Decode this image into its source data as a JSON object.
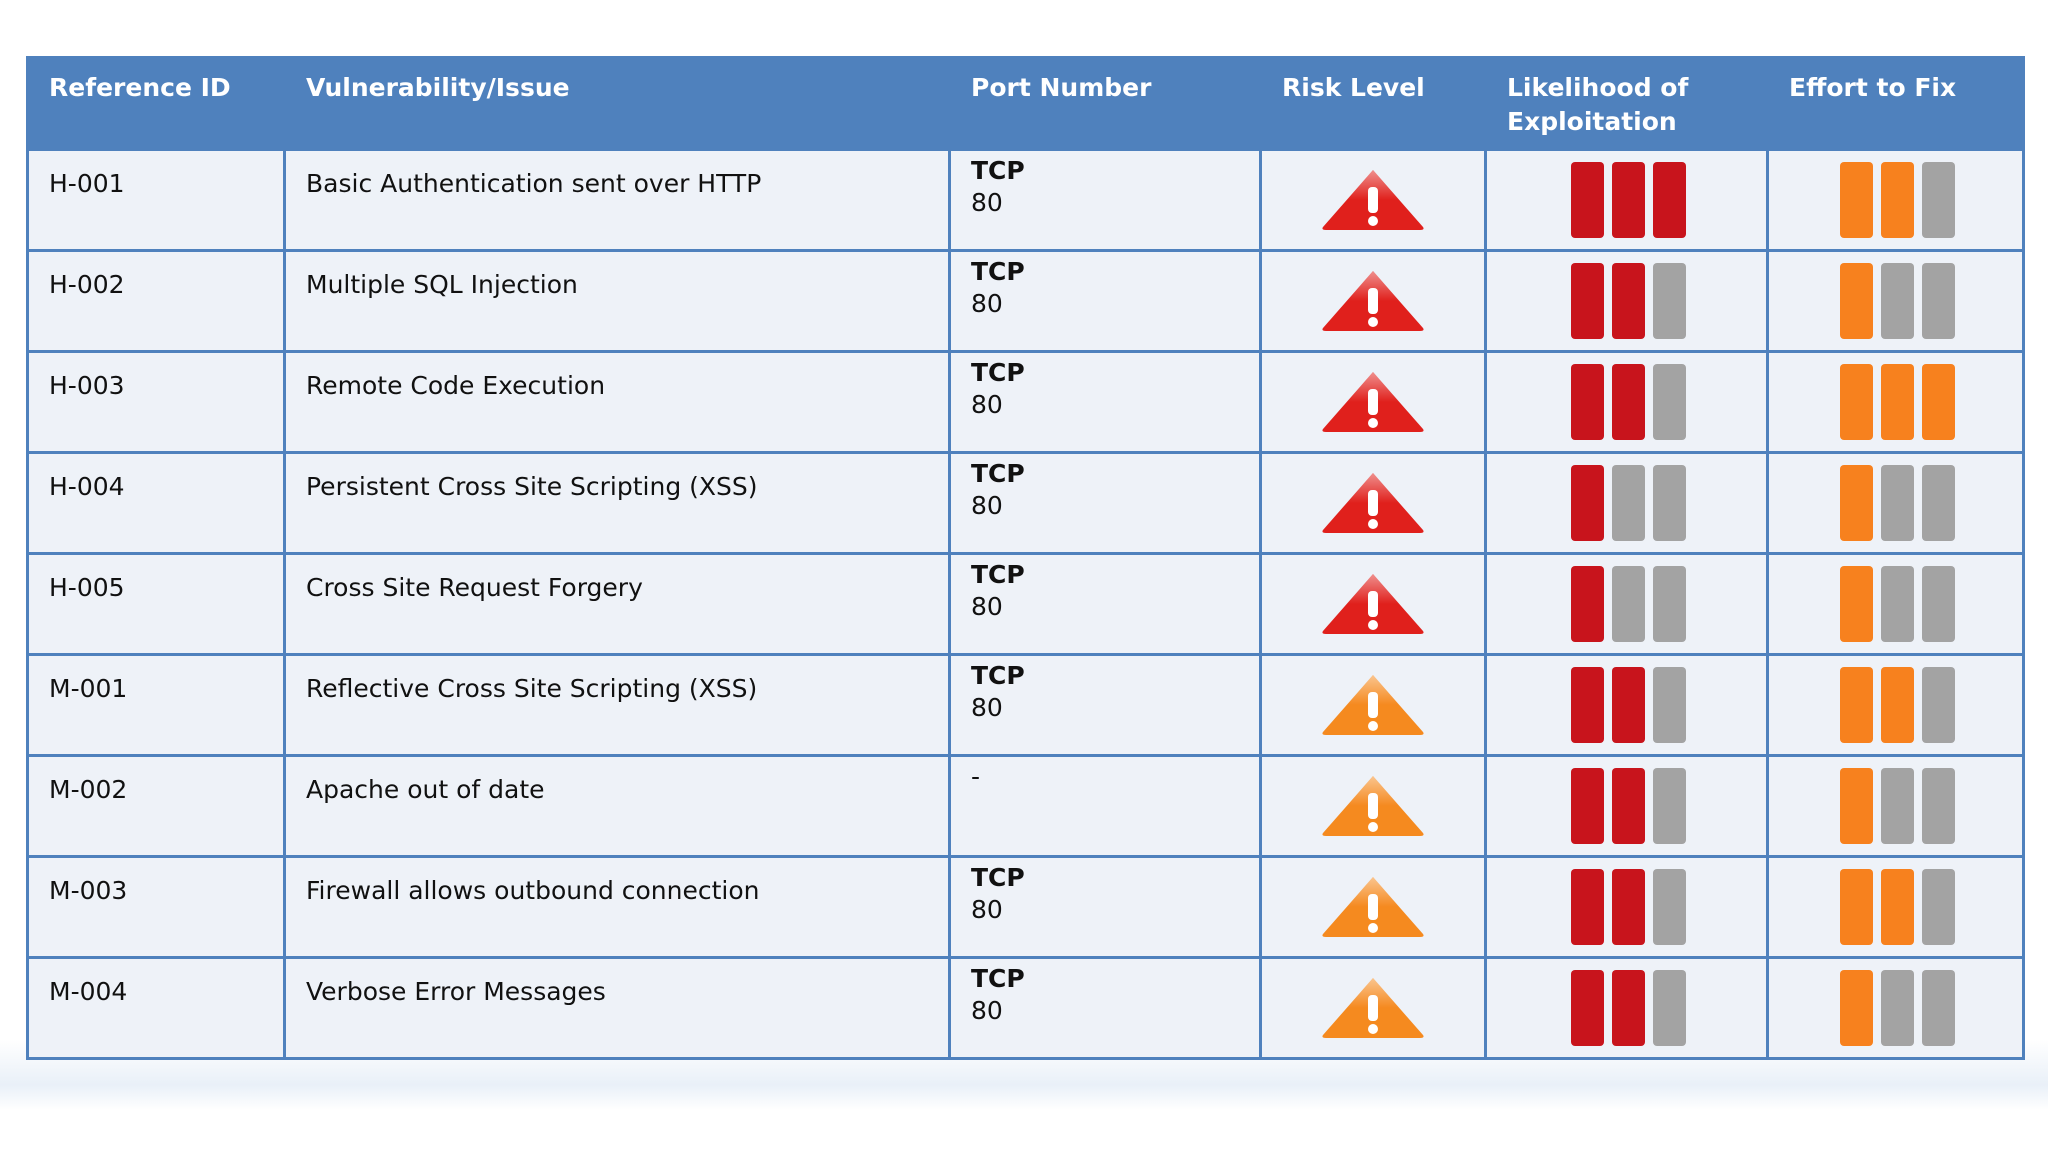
{
  "table": {
    "header": [
      "Reference ID",
      "Vulnerability/Issue",
      "Port Number",
      "Risk Level",
      "Likelihood of Exploitation",
      "Effort to Fix"
    ],
    "likelihood_color": "#c8141c",
    "effort_color": "#f7811e",
    "empty_color": "#a3a3a3",
    "rows": [
      {
        "id": "H-001",
        "issue": "Basic Authentication sent over HTTP",
        "port": [
          "TCP",
          "80"
        ],
        "risk_color": "#e0201c",
        "likelihood": 3,
        "effort": 2
      },
      {
        "id": "H-002",
        "issue": "Multiple SQL Injection",
        "port": [
          "TCP",
          "80"
        ],
        "risk_color": "#e0201c",
        "likelihood": 2,
        "effort": 1
      },
      {
        "id": "H-003",
        "issue": "Remote Code Execution",
        "port": [
          "TCP",
          "80"
        ],
        "risk_color": "#e0201c",
        "likelihood": 2,
        "effort": 3
      },
      {
        "id": "H-004",
        "issue": "Persistent Cross Site Scripting (XSS)",
        "port": [
          "TCP",
          "80"
        ],
        "risk_color": "#e0201c",
        "likelihood": 1,
        "effort": 1
      },
      {
        "id": "H-005",
        "issue": "Cross Site Request Forgery",
        "port": [
          "TCP",
          "80"
        ],
        "risk_color": "#e0201c",
        "likelihood": 1,
        "effort": 1
      },
      {
        "id": "M-001",
        "issue": "Reflective Cross Site Scripting (XSS)",
        "port": [
          "TCP",
          "80"
        ],
        "risk_color": "#f58a1f",
        "likelihood": 2,
        "effort": 2
      },
      {
        "id": "M-002",
        "issue": "Apache out of date",
        "port": [
          "-"
        ],
        "risk_color": "#f58a1f",
        "likelihood": 2,
        "effort": 1
      },
      {
        "id": "M-003",
        "issue": "Firewall allows outbound connection",
        "port": [
          "TCP",
          "80"
        ],
        "risk_color": "#f58a1f",
        "likelihood": 2,
        "effort": 2
      },
      {
        "id": "M-004",
        "issue": "Verbose Error Messages",
        "port": [
          "TCP",
          "80"
        ],
        "risk_color": "#f58a1f",
        "likelihood": 2,
        "effort": 1
      }
    ]
  }
}
